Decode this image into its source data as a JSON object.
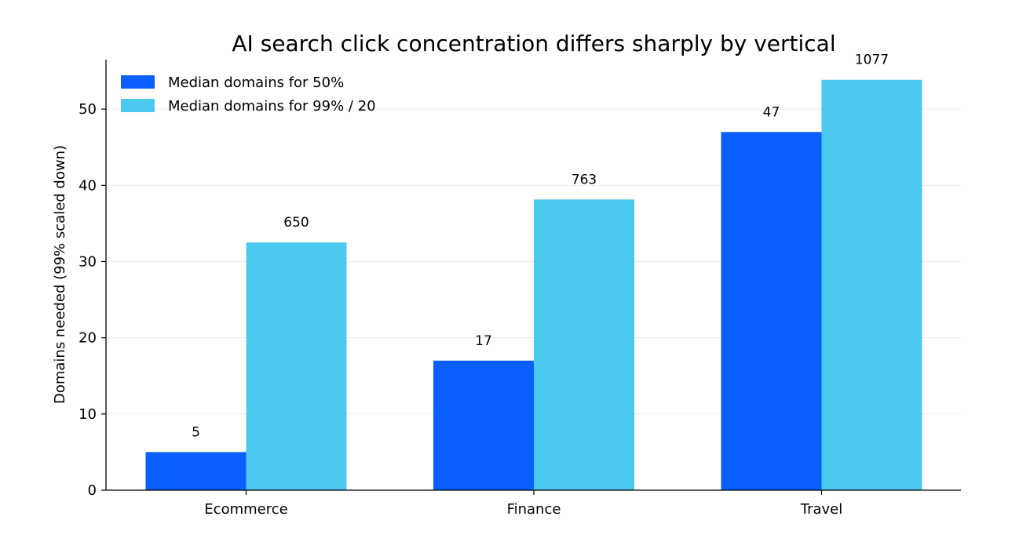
{
  "chart_data": {
    "type": "bar",
    "title": "AI search click concentration differs sharply by vertical",
    "xlabel": "",
    "ylabel": "Domains needed (99% scaled down)",
    "categories": [
      "Ecommerce",
      "Finance",
      "Travel"
    ],
    "series": [
      {
        "name": "Median domains for 50%",
        "values": [
          5,
          17,
          47
        ],
        "labels": [
          "5",
          "17",
          "47"
        ],
        "color": "#0a5fff"
      },
      {
        "name": "Median domains for 99% / 20",
        "values": [
          32.5,
          38.15,
          53.85
        ],
        "labels": [
          "650",
          "763",
          "1077"
        ],
        "color": "#4cc9f0"
      }
    ],
    "ylim": [
      0,
      56.5
    ],
    "yticks": [
      0,
      10,
      20,
      30,
      40,
      50
    ],
    "grid": "horizontal",
    "legend_position": "top-left"
  }
}
